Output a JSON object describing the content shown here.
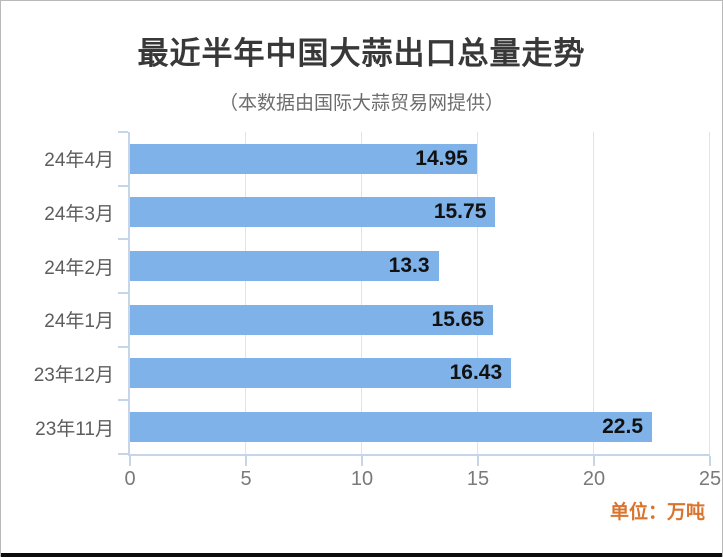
{
  "colors": {
    "bar": "#7FB2E9",
    "axis": "#C6D6E8",
    "grid": "#E3E3E3",
    "title_text": "#383838",
    "subtitle_text": "#6D6D6D",
    "category_text": "#5D5D5D",
    "tick_text": "#7A7A7A",
    "value_text": "#111111",
    "unit_text": "#D9732E"
  },
  "chart_data": {
    "type": "bar",
    "orientation": "horizontal",
    "title": "最近半年中国大蒜出口总量走势",
    "subtitle": "（本数据由国际大蒜贸易网提供）",
    "unit_note": "单位：万吨",
    "unit": "万吨",
    "categories": [
      "24年4月",
      "24年3月",
      "24年2月",
      "24年1月",
      "23年12月",
      "23年11月"
    ],
    "values": [
      14.95,
      15.75,
      13.3,
      15.65,
      16.43,
      22.5
    ],
    "value_labels": [
      "14.95",
      "15.75",
      "13.3",
      "15.65",
      "16.43",
      "22.5"
    ],
    "xlim": [
      0,
      25
    ],
    "xticks": [
      0,
      5,
      10,
      15,
      20,
      25
    ],
    "grid": true,
    "legend": "none",
    "xlabel": "",
    "ylabel": ""
  }
}
